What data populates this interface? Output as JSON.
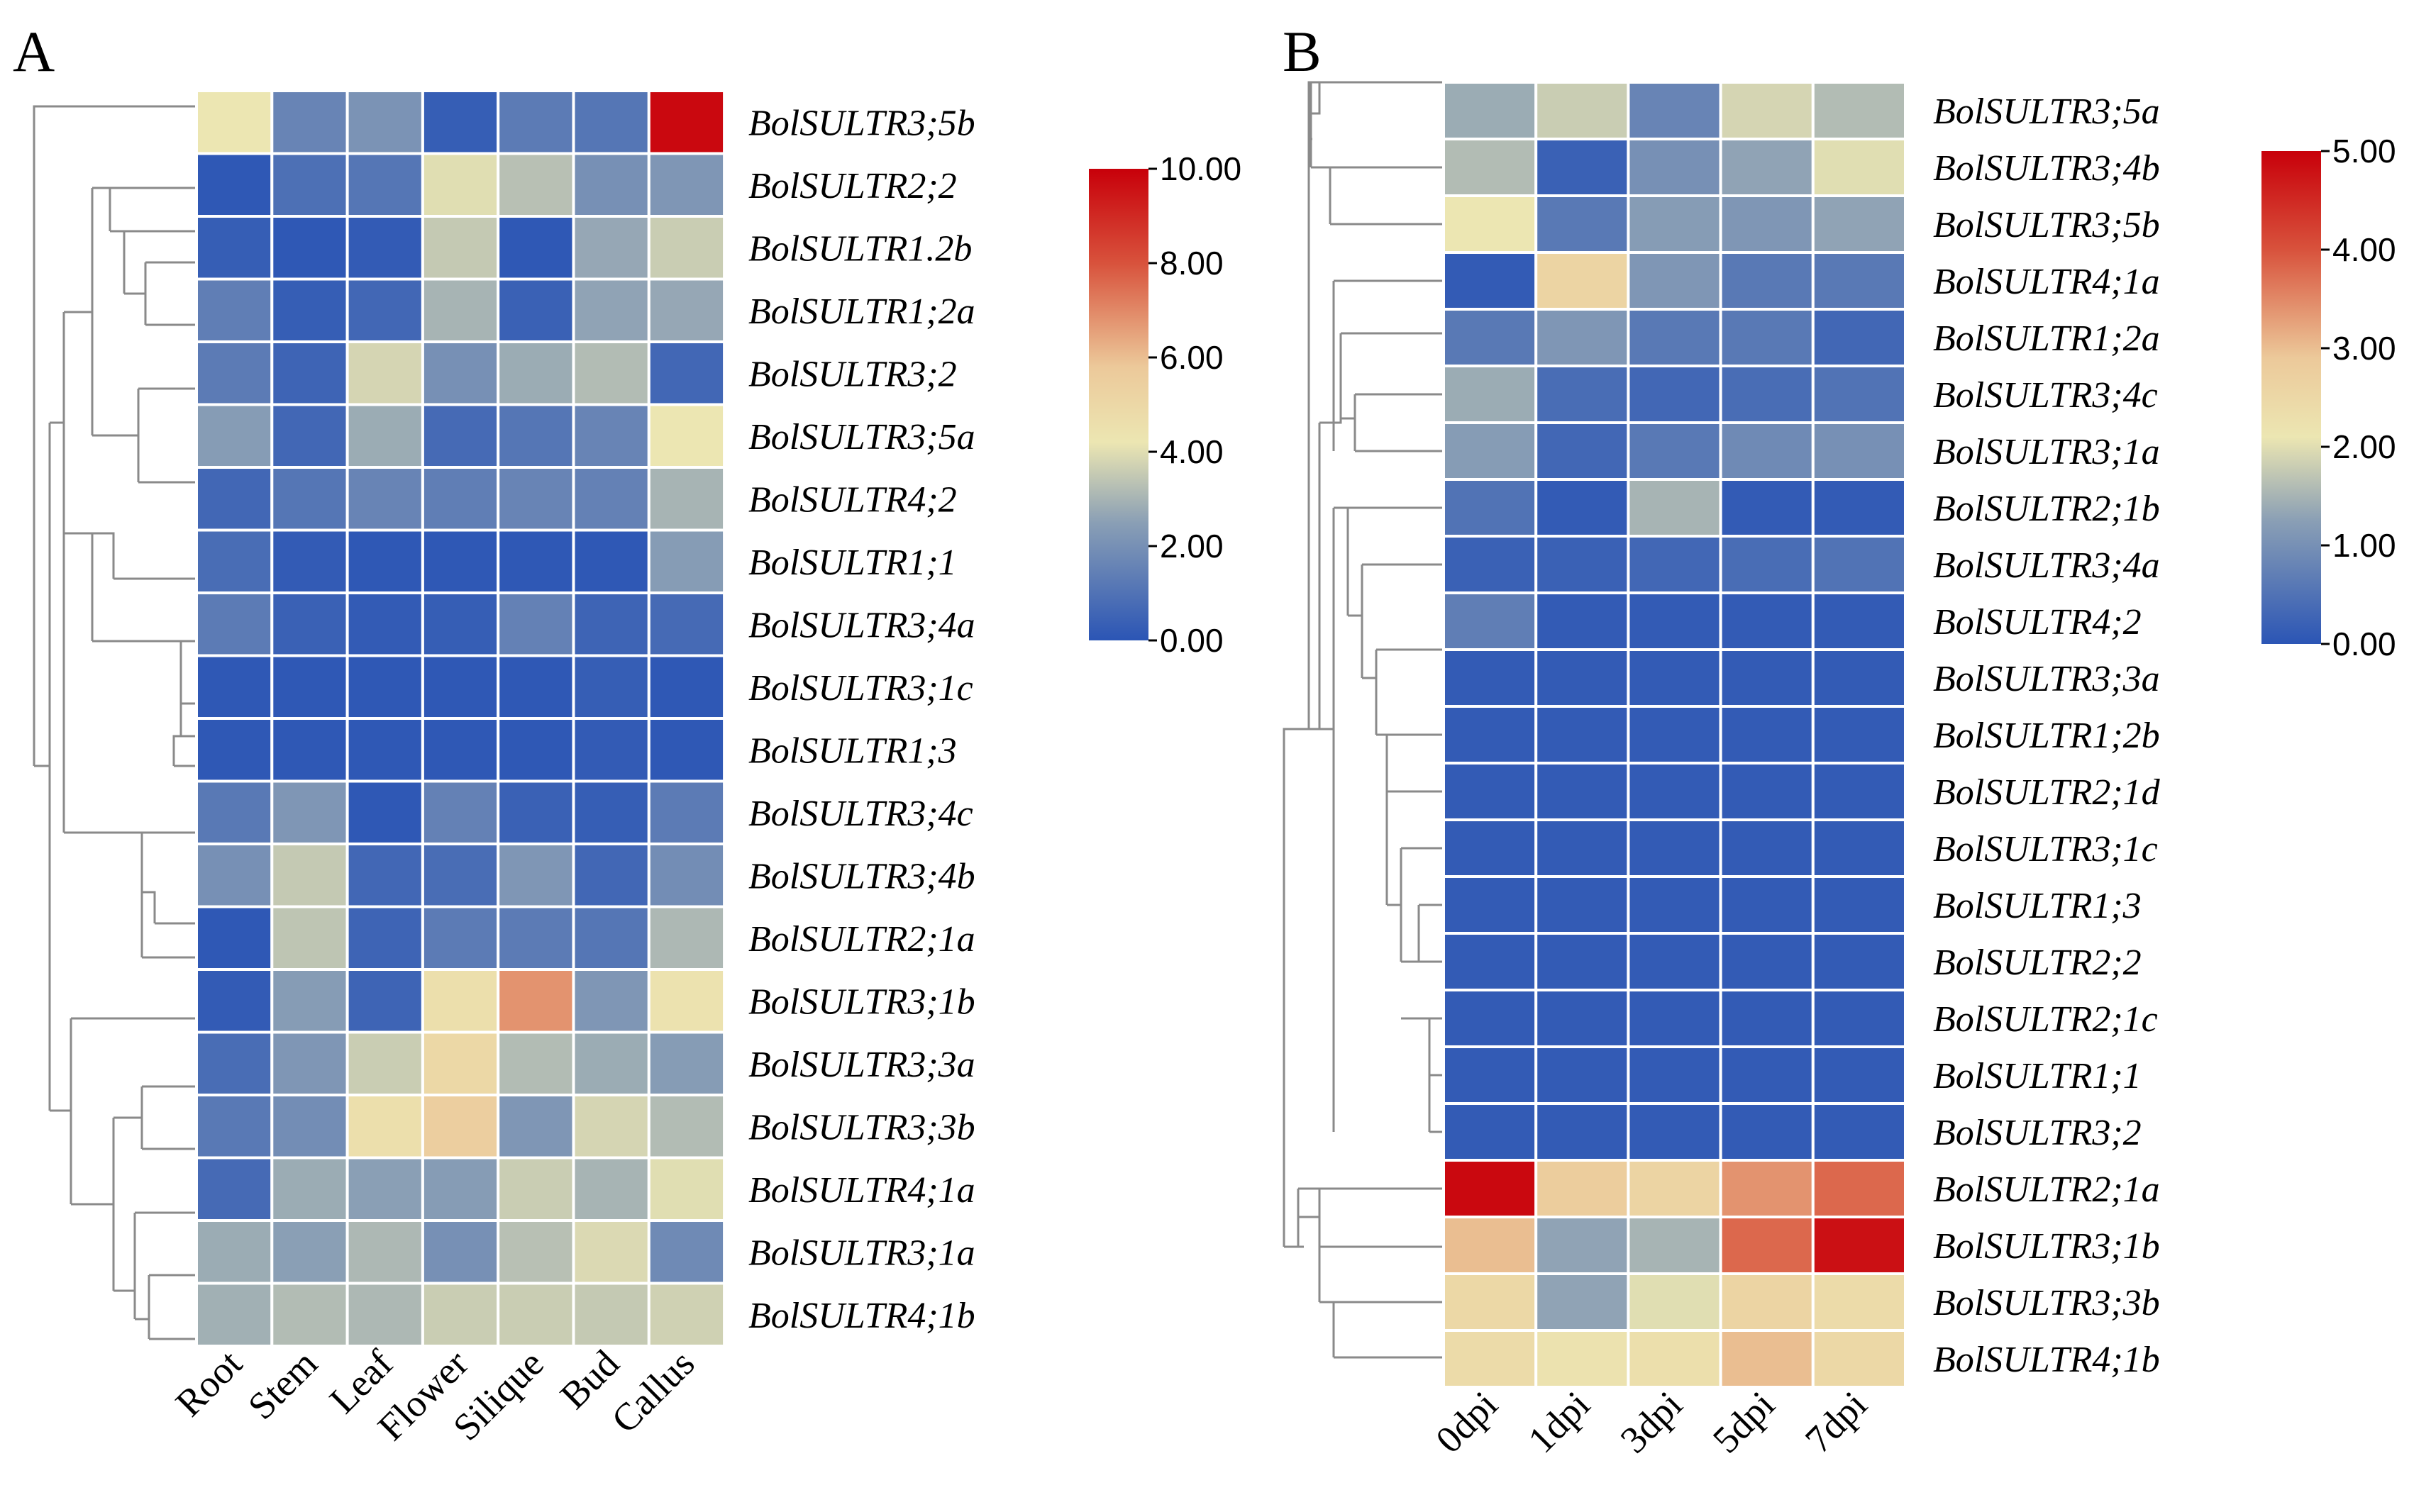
{
  "chart_data": [
    {
      "type": "heatmap",
      "panel": "A",
      "columns": [
        "Root",
        "Stem",
        "Leaf",
        "Flower",
        "Silique",
        "Bud",
        "Callus"
      ],
      "rows": [
        {
          "name": "BolSULTR3;5b",
          "values": [
            4.2,
            1.6,
            2.1,
            0.3,
            1.3,
            1.1,
            9.8
          ]
        },
        {
          "name": "BolSULTR2;2",
          "values": [
            0.1,
            0.9,
            1.1,
            4.0,
            3.3,
            2.0,
            2.2
          ]
        },
        {
          "name": "BolSULTR1.2b",
          "values": [
            0.3,
            0.1,
            0.2,
            3.5,
            0.1,
            2.7,
            3.6
          ]
        },
        {
          "name": "BolSULTR1;2a",
          "values": [
            1.4,
            0.3,
            0.6,
            3.0,
            0.4,
            2.6,
            2.7
          ]
        },
        {
          "name": "BolSULTR3;2",
          "values": [
            1.3,
            0.5,
            3.8,
            2.0,
            2.8,
            3.2,
            0.6
          ]
        },
        {
          "name": "BolSULTR3;5a",
          "values": [
            2.4,
            0.6,
            2.8,
            0.7,
            1.1,
            1.6,
            4.2
          ]
        },
        {
          "name": "BolSULTR4;2",
          "values": [
            0.6,
            1.1,
            1.6,
            1.4,
            1.6,
            1.5,
            3.0
          ]
        },
        {
          "name": "BolSULTR1;1",
          "values": [
            0.8,
            0.2,
            0.1,
            0.1,
            0.1,
            0.1,
            2.4
          ]
        },
        {
          "name": "BolSULTR3;4a",
          "values": [
            1.3,
            0.4,
            0.2,
            0.3,
            1.5,
            0.5,
            0.7
          ]
        },
        {
          "name": "BolSULTR3;1c",
          "values": [
            0.1,
            0.1,
            0.1,
            0.1,
            0.1,
            0.3,
            0.1
          ]
        },
        {
          "name": "BolSULTR1;3",
          "values": [
            0.1,
            0.1,
            0.1,
            0.1,
            0.1,
            0.2,
            0.1
          ]
        },
        {
          "name": "BolSULTR3;4c",
          "values": [
            1.2,
            2.2,
            0.1,
            1.5,
            0.4,
            0.3,
            1.3
          ]
        },
        {
          "name": "BolSULTR3;4b",
          "values": [
            2.0,
            3.5,
            0.6,
            0.8,
            2.2,
            0.6,
            1.9
          ]
        },
        {
          "name": "BolSULTR2;1a",
          "values": [
            0.1,
            3.4,
            0.5,
            1.3,
            1.3,
            1.1,
            3.1
          ]
        },
        {
          "name": "BolSULTR3;1b",
          "values": [
            0.2,
            2.4,
            0.5,
            4.6,
            6.8,
            2.2,
            4.4
          ]
        },
        {
          "name": "BolSULTR3;3a",
          "values": [
            0.8,
            2.2,
            3.6,
            5.0,
            3.2,
            2.8,
            2.4
          ]
        },
        {
          "name": "BolSULTR3;3b",
          "values": [
            1.2,
            1.9,
            4.6,
            5.5,
            2.2,
            3.8,
            3.2
          ]
        },
        {
          "name": "BolSULTR4;1a",
          "values": [
            0.7,
            2.8,
            2.5,
            2.4,
            3.6,
            3.0,
            4.0
          ]
        },
        {
          "name": "BolSULTR3;1a",
          "values": [
            2.8,
            2.5,
            3.1,
            2.0,
            3.3,
            3.9,
            1.8
          ]
        },
        {
          "name": "BolSULTR4;1b",
          "values": [
            2.9,
            3.2,
            3.1,
            3.6,
            3.6,
            3.5,
            3.7
          ]
        }
      ],
      "colorbar": {
        "min": 0,
        "max": 10,
        "ticks": [
          "10.00",
          "8.00",
          "6.00",
          "4.00",
          "2.00",
          "0.00"
        ]
      }
    },
    {
      "type": "heatmap",
      "panel": "B",
      "columns": [
        "0dpi",
        "1dpi",
        "3dpi",
        "5dpi",
        "7dpi"
      ],
      "rows": [
        {
          "name": "BolSULTR3;5a",
          "values": [
            1.4,
            1.8,
            0.8,
            1.9,
            1.6
          ]
        },
        {
          "name": "BolSULTR3;4b",
          "values": [
            1.6,
            0.2,
            1.0,
            1.3,
            2.0
          ]
        },
        {
          "name": "BolSULTR3;5b",
          "values": [
            2.1,
            0.6,
            1.2,
            1.1,
            1.3
          ]
        },
        {
          "name": "BolSULTR4;1a",
          "values": [
            0.1,
            2.6,
            1.1,
            0.6,
            0.6
          ]
        },
        {
          "name": "BolSULTR1;2a",
          "values": [
            0.6,
            1.1,
            0.6,
            0.6,
            0.3
          ]
        },
        {
          "name": "BolSULTR3;4c",
          "values": [
            1.4,
            0.4,
            0.3,
            0.4,
            0.5
          ]
        },
        {
          "name": "BolSULTR3;1a",
          "values": [
            1.2,
            0.3,
            0.6,
            0.9,
            1.0
          ]
        },
        {
          "name": "BolSULTR2;1b",
          "values": [
            0.5,
            0.1,
            1.5,
            0.1,
            0.1
          ]
        },
        {
          "name": "BolSULTR3;4a",
          "values": [
            0.2,
            0.2,
            0.3,
            0.4,
            0.5
          ]
        },
        {
          "name": "BolSULTR4;2",
          "values": [
            0.7,
            0.1,
            0.1,
            0.1,
            0.1
          ]
        },
        {
          "name": "BolSULTR3;3a",
          "values": [
            0.1,
            0.1,
            0.1,
            0.1,
            0.1
          ]
        },
        {
          "name": "BolSULTR1;2b",
          "values": [
            0.1,
            0.1,
            0.1,
            0.1,
            0.1
          ]
        },
        {
          "name": "BolSULTR2;1d",
          "values": [
            0.1,
            0.1,
            0.1,
            0.1,
            0.1
          ]
        },
        {
          "name": "BolSULTR3;1c",
          "values": [
            0.1,
            0.1,
            0.1,
            0.1,
            0.1
          ]
        },
        {
          "name": "BolSULTR1;3",
          "values": [
            0.1,
            0.1,
            0.1,
            0.1,
            0.1
          ]
        },
        {
          "name": "BolSULTR2;2",
          "values": [
            0.1,
            0.1,
            0.1,
            0.1,
            0.1
          ]
        },
        {
          "name": "BolSULTR2;1c",
          "values": [
            0.1,
            0.1,
            0.1,
            0.1,
            0.1
          ]
        },
        {
          "name": "BolSULTR1;1",
          "values": [
            0.1,
            0.1,
            0.1,
            0.1,
            0.1
          ]
        },
        {
          "name": "BolSULTR3;2",
          "values": [
            0.1,
            0.1,
            0.1,
            0.1,
            0.1
          ]
        },
        {
          "name": "BolSULTR2;1a",
          "values": [
            4.9,
            2.8,
            2.6,
            3.4,
            3.8
          ]
        },
        {
          "name": "BolSULTR3;1b",
          "values": [
            3.0,
            1.3,
            1.5,
            3.8,
            4.8
          ]
        },
        {
          "name": "BolSULTR3;3b",
          "values": [
            2.5,
            1.3,
            2.0,
            2.6,
            2.4
          ]
        },
        {
          "name": "BolSULTR4;1b",
          "values": [
            2.4,
            2.2,
            2.3,
            3.0,
            2.5
          ]
        }
      ],
      "colorbar": {
        "min": 0,
        "max": 5,
        "ticks": [
          "5.00",
          "4.00",
          "3.00",
          "2.00",
          "1.00",
          "0.00"
        ]
      }
    }
  ],
  "colors": {
    "low": "#2b55b5",
    "mid_low": "#8a9fb5",
    "mid": "#ece6b2",
    "high": "#d73a2e",
    "top": "#c8000a"
  }
}
